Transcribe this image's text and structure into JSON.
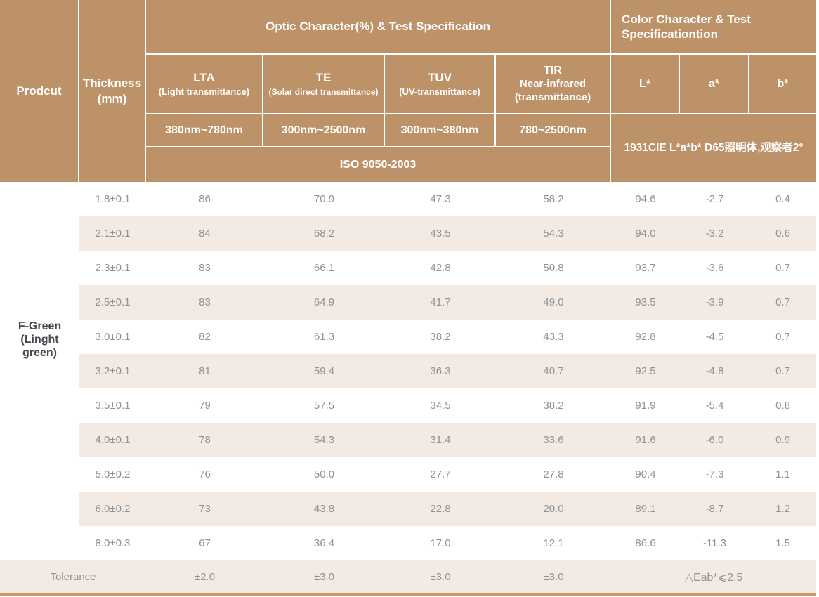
{
  "colors": {
    "header_bg": "#bd9268",
    "header_text": "#ffffff",
    "stripe": "#f3eae3",
    "bottom_border": "#c89a62",
    "value_text": "#8e9398",
    "product_text": "#454a4e"
  },
  "table": {
    "product_header": "Prodcut",
    "thickness_header": "Thickness\n(mm)",
    "optic_group": "Optic Character(%) & Test Specification",
    "color_group": "Color Character & Test\nSpecificationtion",
    "optic_columns": [
      {
        "abbr": "LTA",
        "desc": "(Light transmittance)",
        "range": "380nm~780nm"
      },
      {
        "abbr": "TE",
        "desc": "(Solar direct transmittance)",
        "range": "300nm~2500nm"
      },
      {
        "abbr": "TUV",
        "desc": "(UV-transmittance)",
        "range": "300nm~380nm"
      },
      {
        "abbr": "TIR",
        "desc": "Near-infrared\n(transmittance)",
        "range": "780~2500nm"
      }
    ],
    "color_columns": [
      "L*",
      "a*",
      "b*"
    ],
    "iso_standard": "ISO 9050-2003",
    "cie_spec": "1931CIE L*a*b*  D65照明体,观察者2°",
    "product_name": "F-Green\n(Linght\ngreen)",
    "rows": [
      {
        "thickness": "1.8±0.1",
        "lta": "86",
        "te": "70.9",
        "tuv": "47.3",
        "tir": "58.2",
        "l": "94.6",
        "a": "-2.7",
        "b": "0.4"
      },
      {
        "thickness": "2.1±0.1",
        "lta": "84",
        "te": "68.2",
        "tuv": "43.5",
        "tir": "54.3",
        "l": "94.0",
        "a": "-3.2",
        "b": "0.6"
      },
      {
        "thickness": "2.3±0.1",
        "lta": "83",
        "te": "66.1",
        "tuv": "42.8",
        "tir": "50.8",
        "l": "93.7",
        "a": "-3.6",
        "b": "0.7"
      },
      {
        "thickness": "2.5±0.1",
        "lta": "83",
        "te": "64.9",
        "tuv": "41.7",
        "tir": "49.0",
        "l": "93.5",
        "a": "-3.9",
        "b": "0.7"
      },
      {
        "thickness": "3.0±0.1",
        "lta": "82",
        "te": "61.3",
        "tuv": "38.2",
        "tir": "43.3",
        "l": "92.8",
        "a": "-4.5",
        "b": "0.7"
      },
      {
        "thickness": "3.2±0.1",
        "lta": "81",
        "te": "59.4",
        "tuv": "36.3",
        "tir": "40.7",
        "l": "92.5",
        "a": "-4.8",
        "b": "0.7"
      },
      {
        "thickness": "3.5±0.1",
        "lta": "79",
        "te": "57.5",
        "tuv": "34.5",
        "tir": "38.2",
        "l": "91.9",
        "a": "-5.4",
        "b": "0.8"
      },
      {
        "thickness": "4.0±0.1",
        "lta": "78",
        "te": "54.3",
        "tuv": "31.4",
        "tir": "33.6",
        "l": "91.6",
        "a": "-6.0",
        "b": "0.9"
      },
      {
        "thickness": "5.0±0.2",
        "lta": "76",
        "te": "50.0",
        "tuv": "27.7",
        "tir": "27.8",
        "l": "90.4",
        "a": "-7.3",
        "b": "1.1"
      },
      {
        "thickness": "6.0±0.2",
        "lta": "73",
        "te": "43.8",
        "tuv": "22.8",
        "tir": "20.0",
        "l": "89.1",
        "a": "-8.7",
        "b": "1.2"
      },
      {
        "thickness": "8.0±0.3",
        "lta": "67",
        "te": "36.4",
        "tuv": "17.0",
        "tir": "12.1",
        "l": "86.6",
        "a": "-11.3",
        "b": "1.5"
      }
    ],
    "tolerance": {
      "label": "Tolerance",
      "lta": "±2.0",
      "te": "±3.0",
      "tuv": "±3.0",
      "tir": "±3.0",
      "color": "△Eab*⩽2.5"
    }
  }
}
